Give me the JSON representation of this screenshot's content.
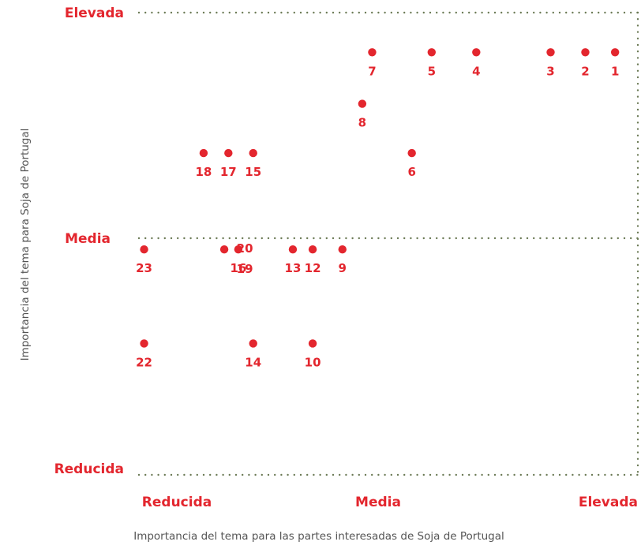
{
  "colors": {
    "accent": "#e3262e",
    "grid": "#6b7a55",
    "axis_text": "#555555",
    "background": "#ffffff"
  },
  "chart_data": {
    "type": "scatter",
    "title": "",
    "xlabel": "Importancia del tema para las partes interesadas de Soja de Portugal",
    "ylabel": "Importancia del tema para Soja de Portugal",
    "xlim": [
      0,
      1
    ],
    "ylim": [
      0,
      1
    ],
    "x_levels": [
      "Reducida",
      "Media",
      "Elevada"
    ],
    "y_levels": [
      "Reducida",
      "Media",
      "Elevada"
    ],
    "grid": "dotted lines at Media (both axes) and Elevada (top and right edges)",
    "points": [
      {
        "label": "1",
        "x": 0.97,
        "y": 0.915
      },
      {
        "label": "2",
        "x": 0.91,
        "y": 0.915
      },
      {
        "label": "3",
        "x": 0.84,
        "y": 0.915
      },
      {
        "label": "4",
        "x": 0.69,
        "y": 0.915
      },
      {
        "label": "5",
        "x": 0.6,
        "y": 0.915
      },
      {
        "label": "6",
        "x": 0.56,
        "y": 0.69
      },
      {
        "label": "7",
        "x": 0.48,
        "y": 0.915
      },
      {
        "label": "8",
        "x": 0.46,
        "y": 0.8
      },
      {
        "label": "9",
        "x": 0.42,
        "y": 0.475
      },
      {
        "label": "10",
        "x": 0.36,
        "y": 0.265
      },
      {
        "label": "12",
        "x": 0.36,
        "y": 0.475
      },
      {
        "label": "13",
        "x": 0.32,
        "y": 0.475
      },
      {
        "label": "14",
        "x": 0.24,
        "y": 0.265
      },
      {
        "label": "15",
        "x": 0.24,
        "y": 0.69
      },
      {
        "label": "16",
        "x": 0.21,
        "y": 0.475
      },
      {
        "label": "17",
        "x": 0.19,
        "y": 0.69
      },
      {
        "label": "18",
        "x": 0.14,
        "y": 0.69
      },
      {
        "label": "19",
        "x": 0.11,
        "y": 0.475
      },
      {
        "label": "20",
        "x": 0.11,
        "y": 0.475
      },
      {
        "label": "22",
        "x": 0.02,
        "y": 0.265
      },
      {
        "label": "23",
        "x": 0.02,
        "y": 0.475
      }
    ]
  }
}
